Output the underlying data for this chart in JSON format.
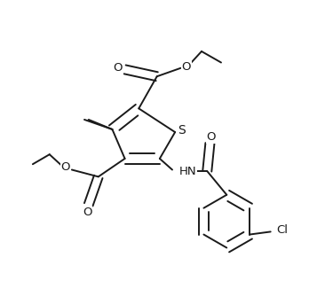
{
  "bg_color": "#ffffff",
  "line_color": "#1a1a1a",
  "line_width": 1.4,
  "font_size": 9.5,
  "figsize": [
    3.66,
    3.17
  ],
  "dpi": 100,
  "xlim": [
    0.0,
    1.0
  ],
  "ylim": [
    0.0,
    1.0
  ]
}
